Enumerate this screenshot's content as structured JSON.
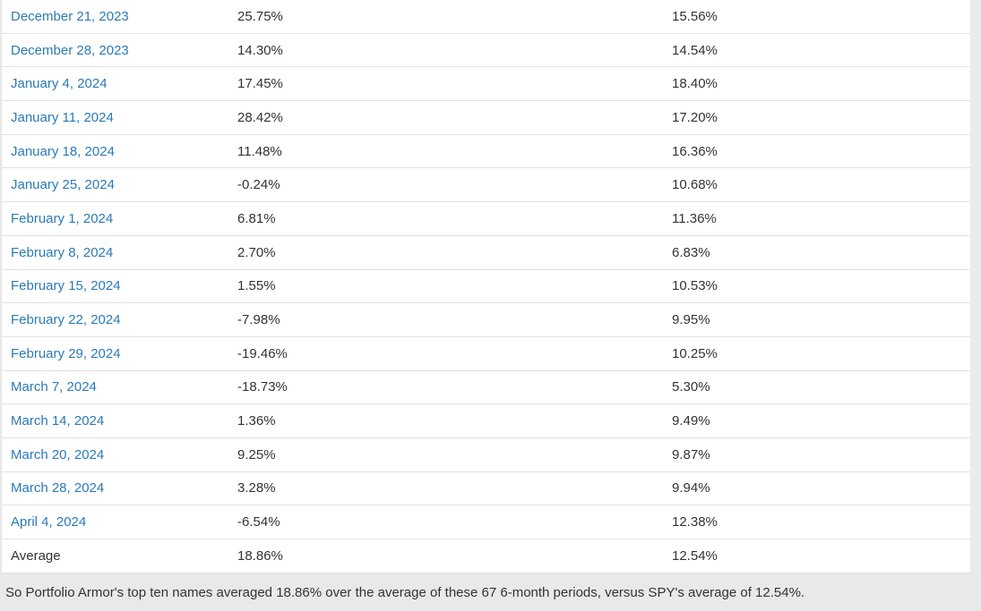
{
  "table": {
    "rows": [
      {
        "date": "December 21, 2023",
        "portfolio": "25.75%",
        "spy": "15.56%",
        "is_link": true
      },
      {
        "date": "December 28, 2023",
        "portfolio": "14.30%",
        "spy": "14.54%",
        "is_link": true
      },
      {
        "date": "January 4, 2024",
        "portfolio": "17.45%",
        "spy": "18.40%",
        "is_link": true
      },
      {
        "date": "January 11, 2024",
        "portfolio": "28.42%",
        "spy": "17.20%",
        "is_link": true
      },
      {
        "date": "January 18, 2024",
        "portfolio": "11.48%",
        "spy": "16.36%",
        "is_link": true
      },
      {
        "date": "January 25, 2024",
        "portfolio": "-0.24%",
        "spy": "10.68%",
        "is_link": true
      },
      {
        "date": "February 1, 2024",
        "portfolio": "6.81%",
        "spy": "11.36%",
        "is_link": true
      },
      {
        "date": "February 8, 2024",
        "portfolio": "2.70%",
        "spy": "6.83%",
        "is_link": true
      },
      {
        "date": "February 15, 2024",
        "portfolio": "1.55%",
        "spy": "10.53%",
        "is_link": true
      },
      {
        "date": "February 22, 2024",
        "portfolio": "-7.98%",
        "spy": "9.95%",
        "is_link": true
      },
      {
        "date": "February 29, 2024",
        "portfolio": "-19.46%",
        "spy": "10.25%",
        "is_link": true
      },
      {
        "date": "March 7, 2024",
        "portfolio": "-18.73%",
        "spy": "5.30%",
        "is_link": true
      },
      {
        "date": "March 14, 2024",
        "portfolio": "1.36%",
        "spy": "9.49%",
        "is_link": true
      },
      {
        "date": "March 20, 2024",
        "portfolio": "9.25%",
        "spy": "9.87%",
        "is_link": true
      },
      {
        "date": "March 28, 2024",
        "portfolio": "3.28%",
        "spy": "9.94%",
        "is_link": true
      },
      {
        "date": "April 4, 2024",
        "portfolio": "-6.54%",
        "spy": "12.38%",
        "is_link": true
      },
      {
        "date": "Average",
        "portfolio": "18.86%",
        "spy": "12.54%",
        "is_link": false
      }
    ]
  },
  "footer": {
    "text": "So Portfolio Armor's top ten names averaged 18.86% over the average of these 67 6-month periods, versus SPY's average of 12.54%."
  },
  "colors": {
    "link_blue": "#2a7ab9",
    "body_text": "#333333",
    "row_divider": "#e2e2e2",
    "footer_background": "#e9e9e9",
    "right_strip_background": "#ebebeb"
  }
}
